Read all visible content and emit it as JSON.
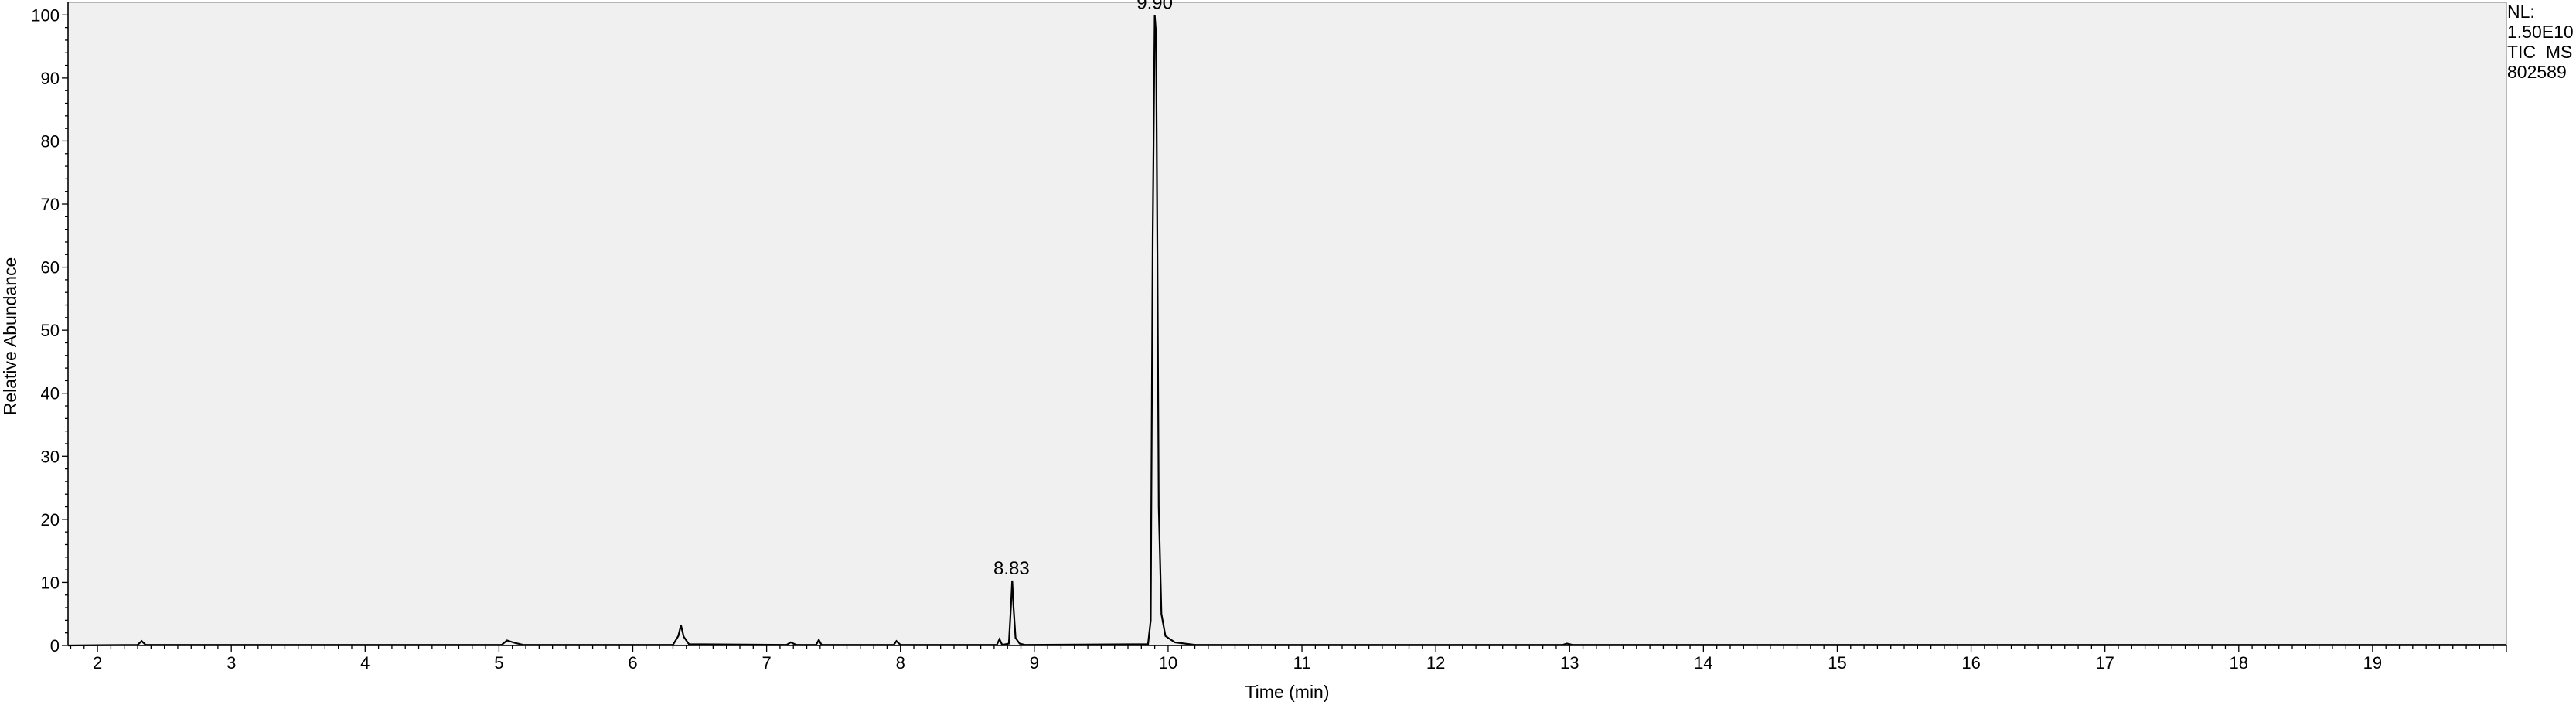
{
  "chart_data": {
    "type": "line",
    "xlabel": "Time (min)",
    "ylabel": "Relative Abundance",
    "xlim": [
      1.78,
      20.0
    ],
    "ylim": [
      0,
      102
    ],
    "x_ticks": [
      2,
      3,
      4,
      5,
      6,
      7,
      8,
      9,
      10,
      11,
      12,
      13,
      14,
      15,
      16,
      17,
      18,
      19
    ],
    "y_ticks": [
      0,
      10,
      20,
      30,
      40,
      50,
      60,
      70,
      80,
      90,
      100
    ],
    "grid": false,
    "background": "#f0f0f0",
    "line_color": "#000000",
    "peak_labels": [
      {
        "x": 8.83,
        "y": 10.3,
        "text": "8.83"
      },
      {
        "x": 9.9,
        "y": 100,
        "text": "9.90"
      }
    ],
    "info": [
      "NL:",
      "1.50E10",
      "TIC  MS",
      "802589"
    ],
    "series": [
      {
        "points": [
          [
            1.78,
            0
          ],
          [
            2.3,
            0.1
          ],
          [
            2.33,
            0.7
          ],
          [
            2.36,
            0.1
          ],
          [
            5.02,
            0.1
          ],
          [
            5.06,
            0.8
          ],
          [
            5.12,
            0.4
          ],
          [
            5.18,
            0.1
          ],
          [
            6.3,
            0.1
          ],
          [
            6.34,
            1.5
          ],
          [
            6.36,
            3.2
          ],
          [
            6.38,
            1.4
          ],
          [
            6.42,
            0.2
          ],
          [
            7.15,
            0.1
          ],
          [
            7.18,
            0.5
          ],
          [
            7.22,
            0.1
          ],
          [
            7.37,
            0.1
          ],
          [
            7.39,
            0.9
          ],
          [
            7.41,
            0.1
          ],
          [
            7.95,
            0.1
          ],
          [
            7.97,
            0.7
          ],
          [
            8.0,
            0.1
          ],
          [
            8.72,
            0.1
          ],
          [
            8.74,
            1.0
          ],
          [
            8.76,
            0.1
          ],
          [
            8.81,
            0.3
          ],
          [
            8.825,
            6.0
          ],
          [
            8.835,
            10.3
          ],
          [
            8.845,
            6.0
          ],
          [
            8.86,
            1.2
          ],
          [
            8.89,
            0.3
          ],
          [
            8.93,
            0.1
          ],
          [
            9.85,
            0.2
          ],
          [
            9.87,
            4
          ],
          [
            9.885,
            65
          ],
          [
            9.9,
            100
          ],
          [
            9.91,
            97
          ],
          [
            9.92,
            62
          ],
          [
            9.93,
            22
          ],
          [
            9.95,
            5
          ],
          [
            9.98,
            1.5
          ],
          [
            10.05,
            0.5
          ],
          [
            10.2,
            0.1
          ],
          [
            12.95,
            0.1
          ],
          [
            12.98,
            0.3
          ],
          [
            13.02,
            0.1
          ],
          [
            20.0,
            0.1
          ]
        ]
      }
    ]
  }
}
